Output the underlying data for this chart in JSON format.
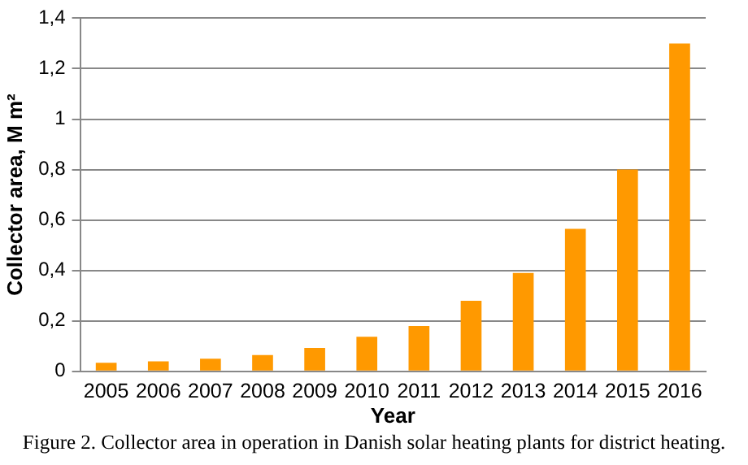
{
  "chart_data": {
    "type": "bar",
    "xlabel": "Year",
    "ylabel": "Collector area, M m²",
    "categories": [
      "2005",
      "2006",
      "2007",
      "2008",
      "2009",
      "2010",
      "2011",
      "2012",
      "2013",
      "2014",
      "2015",
      "2016"
    ],
    "values": [
      0.034,
      0.04,
      0.05,
      0.065,
      0.093,
      0.137,
      0.18,
      0.28,
      0.39,
      0.565,
      0.8,
      1.3
    ],
    "color": "#ff9900",
    "ylim": [
      0,
      1.4
    ],
    "yticks": [
      0,
      {
        "value": 0.2,
        "label": "0,2"
      },
      {
        "value": 0.4,
        "label": "0,4"
      },
      {
        "value": 0.6,
        "label": "0,6"
      },
      {
        "value": 0.8,
        "label": "0,8"
      },
      1,
      {
        "value": 1.2,
        "label": "1,2"
      },
      {
        "value": 1.4,
        "label": "1,4"
      }
    ],
    "grid": "y",
    "annotations": [
      "Figure 2. Collector area in operation in Danish solar heating plants for district heating."
    ]
  }
}
